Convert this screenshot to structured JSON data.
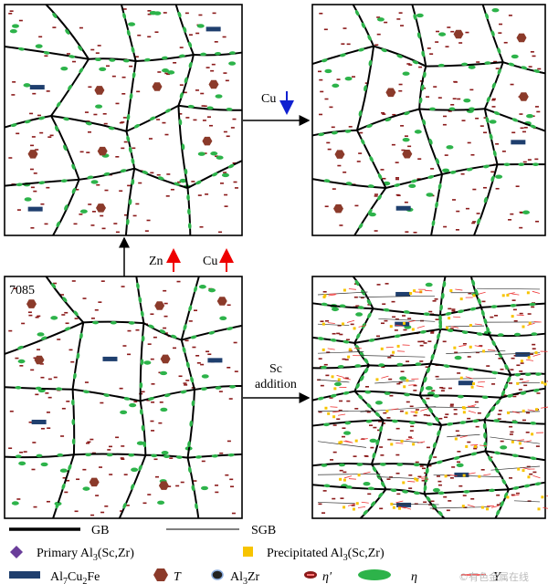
{
  "panel_label": "7085",
  "arrows": {
    "cu_top": "Cu",
    "zn": "Zn",
    "cu_up": "Cu",
    "sc": [
      "Sc",
      "addition"
    ]
  },
  "legend": {
    "gb": "GB",
    "sgb": "SGB",
    "primary": [
      "Primary Al",
      "3",
      "(Sc,Zr)"
    ],
    "precipitated": [
      "Precipitated Al",
      "3",
      "(Sc,Zr)"
    ],
    "al7cu2fe": [
      "Al",
      "7",
      "Cu",
      "2",
      "Fe"
    ],
    "t": "T",
    "al3zr": [
      "Al",
      "3",
      "Zr"
    ],
    "eta_prime": "η′",
    "eta": "η",
    "y": "Y"
  },
  "watermark": "©有色金属在线"
}
